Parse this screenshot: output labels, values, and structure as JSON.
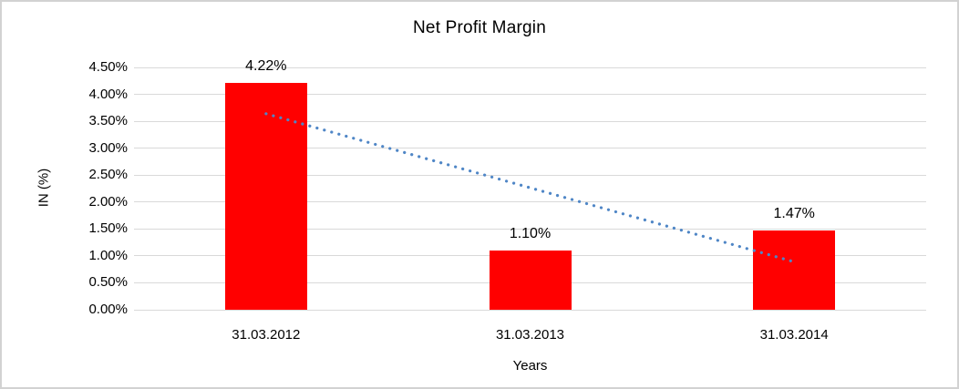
{
  "chart_data": {
    "type": "bar",
    "title": "Net Profit Margin",
    "xlabel": "Years",
    "ylabel": "IN (%)",
    "categories": [
      "31.03.2012",
      "31.03.2013",
      "31.03.2014"
    ],
    "values": [
      4.22,
      1.1,
      1.47
    ],
    "data_labels": [
      "4.22%",
      "1.10%",
      "1.47%"
    ],
    "ylim": [
      0,
      4.5
    ],
    "ytick_step": 0.5,
    "ytick_labels": [
      "0.00%",
      "0.50%",
      "1.00%",
      "1.50%",
      "2.00%",
      "2.50%",
      "3.00%",
      "3.50%",
      "4.00%",
      "4.50%"
    ],
    "grid": true,
    "legend": "none",
    "bar_color": "#ff0000",
    "text_color": "#000000",
    "gridline_color": "#d9d9d9",
    "trendline": {
      "type": "linear",
      "style": "dotted",
      "color": "#4f86c6",
      "start_value": 3.64,
      "end_value": 0.89
    }
  }
}
